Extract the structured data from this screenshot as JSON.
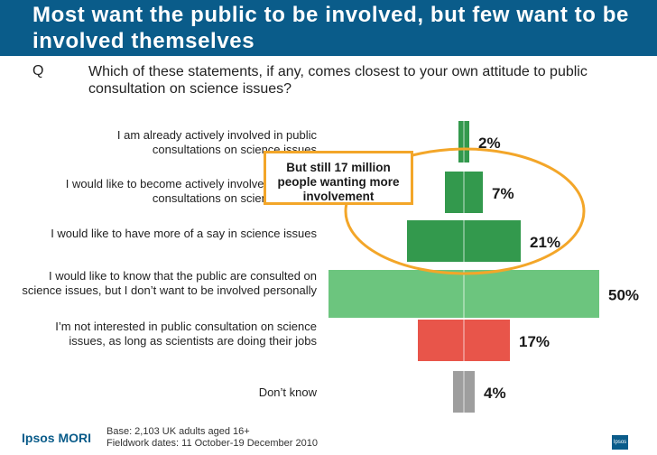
{
  "header": {
    "title": "Most want the public to be involved, but few want to be involved themselves"
  },
  "question": {
    "label": "Q",
    "text": "Which of these statements, if any, comes closest to your own attitude to public consultation on science issues?"
  },
  "chart_data": {
    "type": "bar",
    "orientation": "horizontal-centered",
    "categories": [
      "I am already actively involved in public consultations on science issues",
      "I would like to become actively involved in public consultations on science issues",
      "I would like to have more of a say in science issues",
      "I would like to know that the public are consulted on science issues, but I don’t want to be involved personally",
      "I’m not interested in public consultation on science issues, as long as scientists are doing their jobs",
      "Don’t know"
    ],
    "values": [
      2,
      7,
      21,
      50,
      17,
      4
    ],
    "value_labels": [
      "2%",
      "7%",
      "21%",
      "50%",
      "17%",
      "4%"
    ],
    "unit": "%",
    "colors": [
      "#33994d",
      "#33994d",
      "#33994d",
      "#6cc57e",
      "#e8554a",
      "#9e9e9e"
    ],
    "annotation": "But still 17 million people wanting more involvement",
    "annotation_color": "#f3a629"
  },
  "footer": {
    "logo": "Ipsos MORI",
    "base": "Base: 2,103 UK adults aged 16+",
    "fieldwork": "Fieldwork dates: 11 October-19 December 2010",
    "badge": "Ipsos"
  },
  "colors": {
    "title_bar": "#0a5c8a",
    "title_text": "#ffffff"
  }
}
